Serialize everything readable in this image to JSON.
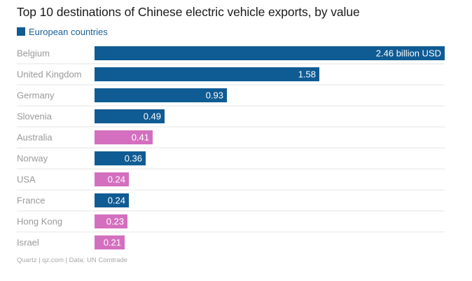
{
  "chart_data": {
    "type": "bar",
    "orientation": "horizontal",
    "title": "Top 10 destinations of Chinese electric vehicle exports, by value",
    "legend": {
      "label": "European countries",
      "color": "#0f5b94",
      "placement": "top-left"
    },
    "unit": "billion USD",
    "categories": [
      "Belgium",
      "United Kingdom",
      "Germany",
      "Slovenia",
      "Australia",
      "Norway",
      "USA",
      "France",
      "Hong Kong",
      "Israel"
    ],
    "values": [
      2.46,
      1.58,
      0.93,
      0.49,
      0.41,
      0.36,
      0.24,
      0.24,
      0.23,
      0.21
    ],
    "data_labels": [
      "2.46 billion USD",
      "1.58",
      "0.93",
      "0.49",
      "0.41",
      "0.36",
      "0.24",
      "0.24",
      "0.23",
      "0.21"
    ],
    "european": [
      true,
      true,
      true,
      true,
      false,
      true,
      false,
      true,
      false,
      false
    ],
    "colors": {
      "european": "#0f5b94",
      "other": "#d46fbf",
      "category_label": "#9a9a9a",
      "separator": "#e4e4e4",
      "value_label": "#ffffff"
    },
    "xlim": [
      0,
      2.46
    ],
    "grid": false
  },
  "source": "Quartz | qz.com | Data: UN Comtrade"
}
